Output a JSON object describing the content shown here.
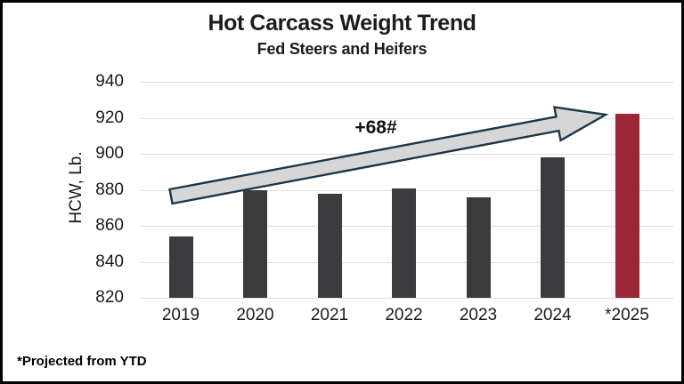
{
  "chart_data": {
    "type": "bar",
    "title": "Hot Carcass Weight Trend",
    "subtitle": "Fed Steers and Heifers",
    "categories": [
      "2019",
      "2020",
      "2021",
      "2022",
      "2023",
      "2024",
      "*2025"
    ],
    "values": [
      854,
      880,
      878,
      881,
      876,
      898,
      922
    ],
    "xlabel": "",
    "ylabel": "HCW, Lb.",
    "ylim": [
      820,
      940
    ],
    "yticks": [
      820,
      840,
      860,
      880,
      900,
      920,
      940
    ],
    "grid": true,
    "legend": "none",
    "bar_colors": [
      "#3b3b3d",
      "#3b3b3d",
      "#3b3b3d",
      "#3b3b3d",
      "#3b3b3d",
      "#3b3b3d",
      "#9e2437"
    ],
    "annotation": {
      "label": "+68#",
      "from_category": "2019",
      "to_category": "*2025"
    },
    "footnote": "*Projected from YTD"
  },
  "colors": {
    "bar_default": "#3b3b3d",
    "bar_projected": "#9e2437",
    "gridline": "#dcdcdc",
    "arrow_fill": "#d6d6d6",
    "arrow_outline": "#1f3546",
    "text": "#1a1a1a",
    "border": "#000000",
    "background": "#ffffff"
  }
}
